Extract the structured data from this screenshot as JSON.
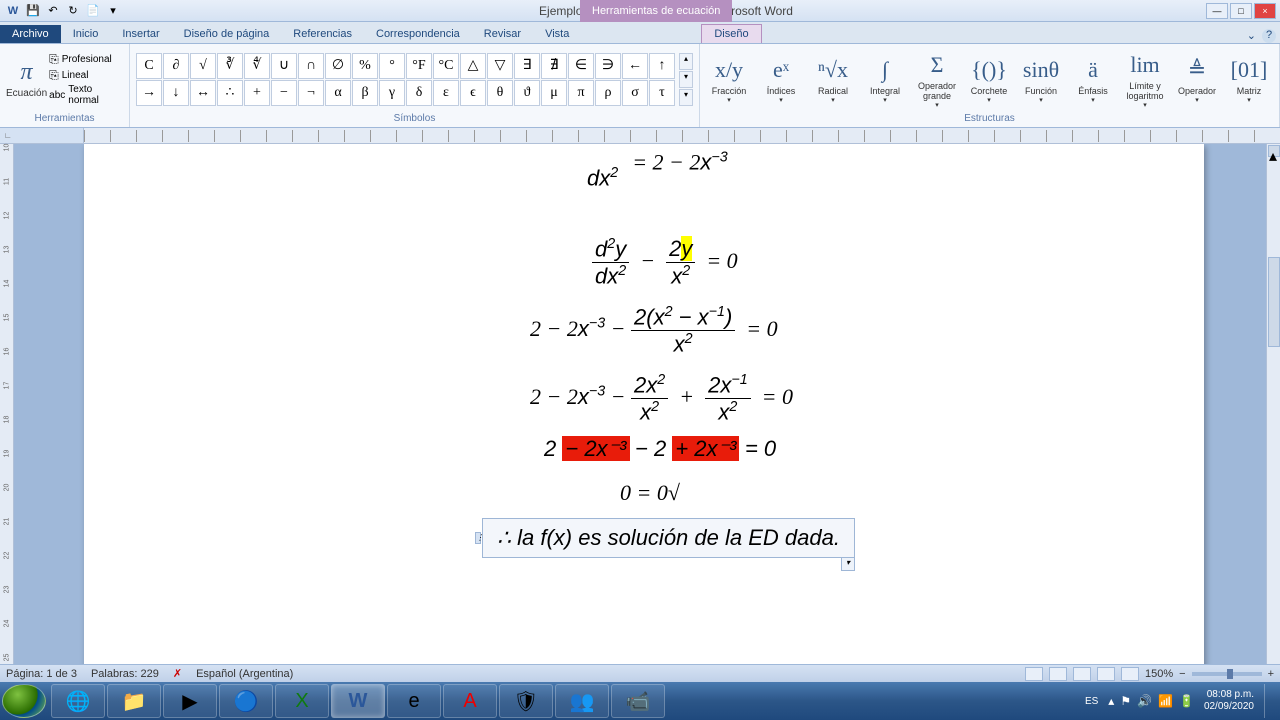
{
  "window": {
    "title": "Ejemplos resueltos_Semana 4 - Microsoft Word",
    "contextual_tab": "Herramientas de ecuación"
  },
  "tabs": {
    "file": "Archivo",
    "items": [
      "Inicio",
      "Insertar",
      "Diseño de página",
      "Referencias",
      "Correspondencia",
      "Revisar",
      "Vista"
    ],
    "design": "Diseño"
  },
  "ribbon": {
    "tools": {
      "equation": "Ecuación",
      "profesional": "Profesional",
      "lineal": "Lineal",
      "texto_normal": "Texto normal",
      "group": "Herramientas"
    },
    "symbols": {
      "row1": [
        "C",
        "∂",
        "√",
        "∛",
        "∜",
        "∪",
        "∩",
        "∅",
        "%",
        "°",
        "°F",
        "°C",
        "△",
        "▽",
        "∃",
        "∄",
        "∈",
        "∋",
        "←",
        "↑"
      ],
      "row2": [
        "→",
        "↓",
        "↔",
        "∴",
        "+",
        "−",
        "¬",
        "α",
        "β",
        "γ",
        "δ",
        "ε",
        "ϵ",
        "θ",
        "ϑ",
        "μ",
        "π",
        "ρ",
        "σ",
        "τ"
      ],
      "group": "Símbolos"
    },
    "structures": {
      "items": [
        {
          "icon": "x/y",
          "label": "Fracción"
        },
        {
          "icon": "eˣ",
          "label": "Índices"
        },
        {
          "icon": "ⁿ√x",
          "label": "Radical"
        },
        {
          "icon": "∫",
          "label": "Integral"
        },
        {
          "icon": "Σ",
          "label": "Operador grande"
        },
        {
          "icon": "{()}",
          "label": "Corchete"
        },
        {
          "icon": "sinθ",
          "label": "Función"
        },
        {
          "icon": "ä",
          "label": "Énfasis"
        },
        {
          "icon": "lim",
          "label": "Límite y logaritmo"
        },
        {
          "icon": "≜",
          "label": "Operador"
        },
        {
          "icon": "[01]",
          "label": "Matriz"
        }
      ],
      "group": "Estructuras"
    }
  },
  "document": {
    "equations": {
      "eq1_left": "d x²",
      "eq1_right": "= 2 − 2x⁻³",
      "eq2_full": "d²y/dx² − 2y/x² = 0",
      "eq3_full": "2 − 2x⁻³ − 2(x² − x⁻¹)/x² = 0",
      "eq4_full": "2 − 2x⁻³ − 2x²/x² + 2x⁻¹/x² = 0",
      "eq5_pre": "2 ",
      "eq5_red1": "− 2x⁻³",
      "eq5_mid": " − 2 ",
      "eq5_red2": "+ 2x⁻³",
      "eq5_post": " = 0",
      "eq6": "0 = 0√",
      "eq_box": "∴ la f(x) es solución de la ED dada."
    },
    "highlight_colors": {
      "yellow": "#ffff00",
      "red": "#e81c0a"
    }
  },
  "statusbar": {
    "page": "Página: 1 de 3",
    "words": "Palabras: 229",
    "language": "Español (Argentina)",
    "zoom": "150%"
  },
  "taskbar": {
    "lang": "ES",
    "time": "08:08 p.m.",
    "date": "02/09/2020"
  }
}
